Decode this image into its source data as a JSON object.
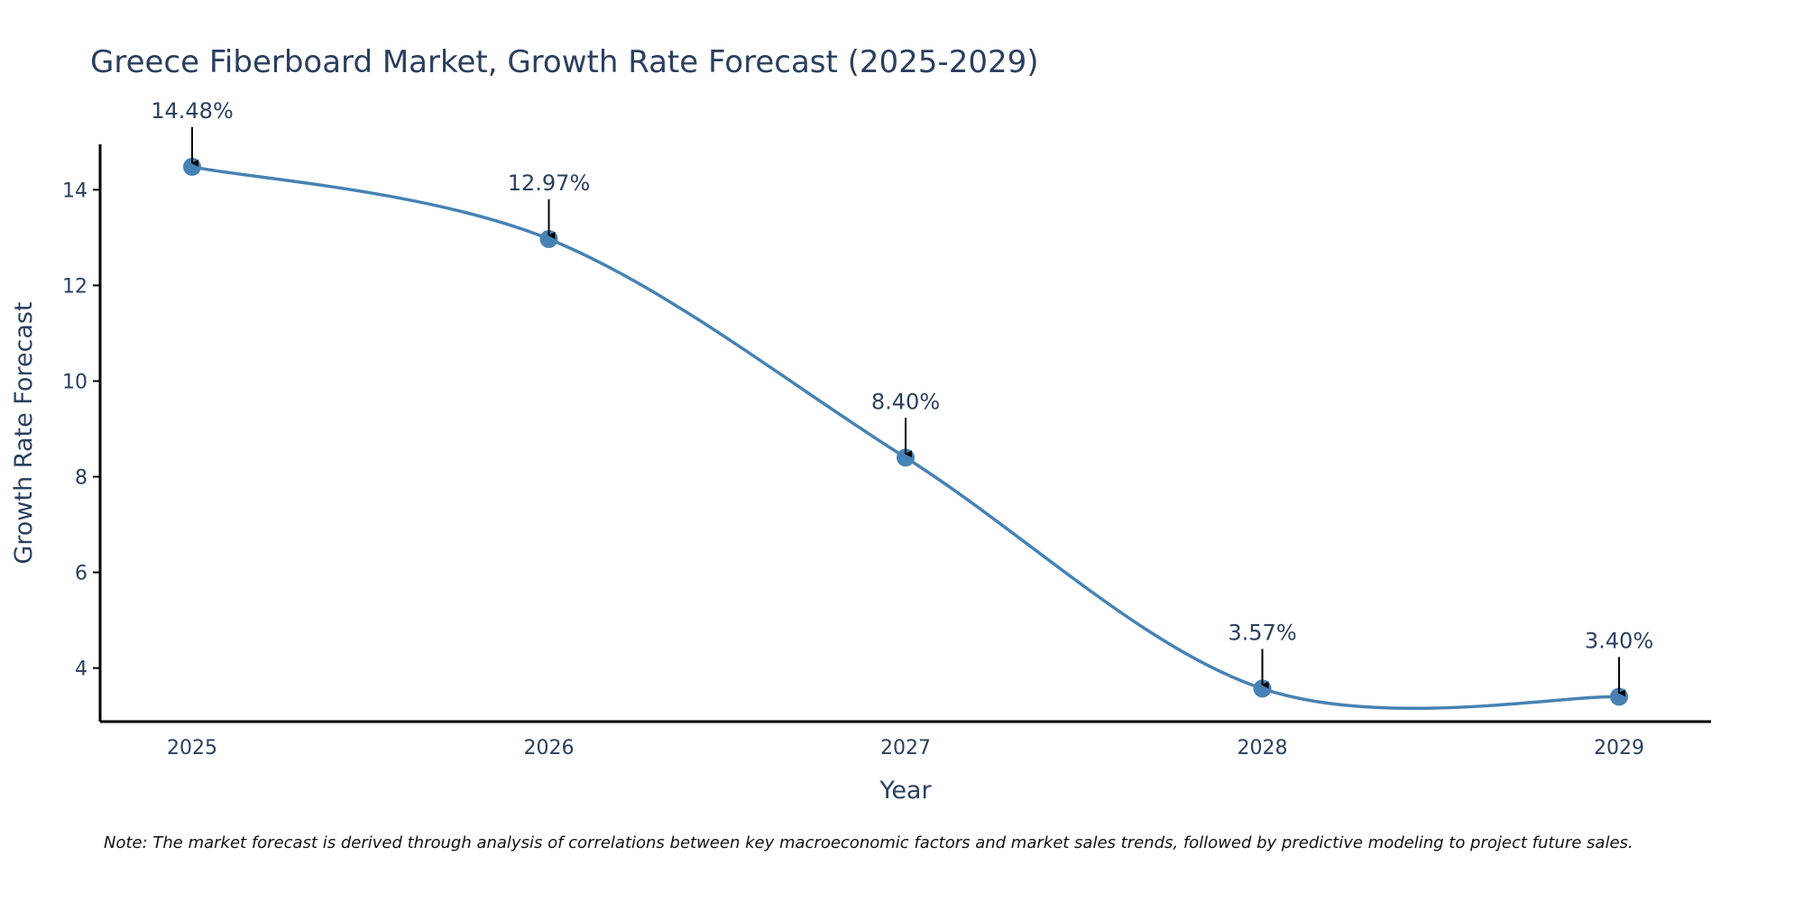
{
  "chart_data": {
    "type": "line",
    "title": "Greece Fiberboard Market, Growth Rate Forecast (2025-2029)",
    "xlabel": "Year",
    "ylabel": "Growth Rate Forecast",
    "categories": [
      "2025",
      "2026",
      "2027",
      "2028",
      "2029"
    ],
    "series": [
      {
        "name": "Growth Rate Forecast",
        "values": [
          14.48,
          12.97,
          8.4,
          3.57,
          3.4
        ],
        "labels": [
          "14.48%",
          "12.97%",
          "8.40%",
          "3.57%",
          "3.40%"
        ]
      }
    ],
    "y_ticks": [
      4,
      6,
      8,
      10,
      12,
      14
    ],
    "ylim": [
      2.88,
      14.95
    ],
    "line_color": "#4682b4",
    "marker_color": "#4682b4",
    "arrow_color": "#000000",
    "grid": false,
    "note": "Note: The market forecast is derived through analysis of correlations between key macroeconomic factors and market sales trends, followed by predictive modeling to project future sales."
  }
}
